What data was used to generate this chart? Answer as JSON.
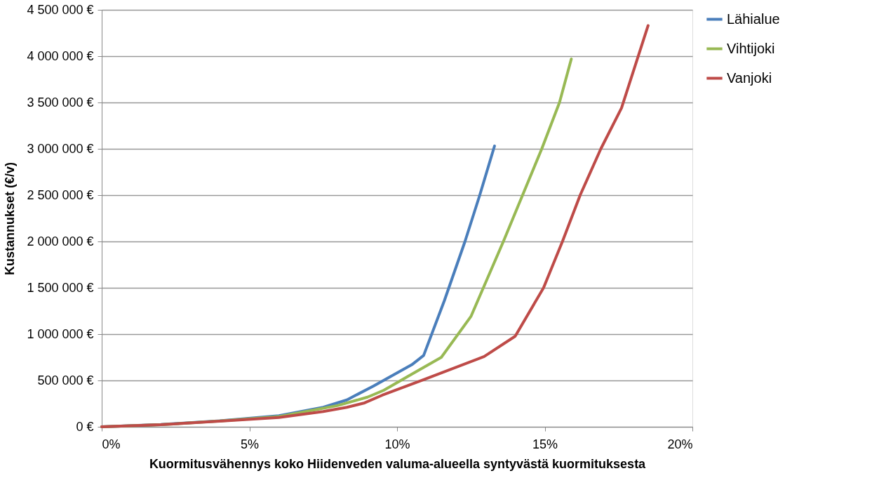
{
  "chart_data": {
    "type": "line",
    "xlabel": "Kuormitusvähennys koko Hiidenveden valuma-alueella syntyvästä kuormituksesta",
    "ylabel": "Kustannukset (€/v)",
    "xlim": [
      0,
      20
    ],
    "xticks": [
      {
        "value": 0,
        "label": "0%"
      },
      {
        "value": 5,
        "label": "5%"
      },
      {
        "value": 10,
        "label": "10%"
      },
      {
        "value": 15,
        "label": "15%"
      },
      {
        "value": 20,
        "label": "20%"
      }
    ],
    "ylim": [
      0,
      4500000
    ],
    "yticks": [
      {
        "value": 0,
        "label": "0 €"
      },
      {
        "value": 500000,
        "label": "500 000 €"
      },
      {
        "value": 1000000,
        "label": "1 000 000 €"
      },
      {
        "value": 1500000,
        "label": "1 500 000 €"
      },
      {
        "value": 2000000,
        "label": "2 000 000 €"
      },
      {
        "value": 2500000,
        "label": "2 500 000 €"
      },
      {
        "value": 3000000,
        "label": "3 000 000 €"
      },
      {
        "value": 3500000,
        "label": "3 500 000 €"
      },
      {
        "value": 4000000,
        "label": "4 000 000 €"
      },
      {
        "value": 4500000,
        "label": "4 500 000 €"
      }
    ],
    "grid": "y",
    "legend": "right",
    "marker": "none",
    "line_style": "solid",
    "series": [
      {
        "name": "Lähialue",
        "color": "#4a7ebb",
        "x": [
          0,
          2,
          4,
          6,
          7.5,
          8.3,
          9.2,
          10.5,
          10.9,
          11.6,
          12.3,
          12.8,
          13.3
        ],
        "values": [
          0,
          25000,
          65000,
          120000,
          210000,
          290000,
          440000,
          670000,
          770000,
          1360000,
          2000000,
          2500000,
          3030000
        ]
      },
      {
        "name": "Vihtijoki",
        "color": "#98b954",
        "x": [
          0,
          2,
          4,
          6,
          8,
          9,
          9.55,
          10.5,
          11.5,
          12.5,
          13.6,
          14.9,
          15.5,
          15.9
        ],
        "values": [
          0,
          22000,
          62000,
          110000,
          230000,
          320000,
          394000,
          568000,
          750000,
          1190000,
          2000000,
          3000000,
          3500000,
          3970000
        ]
      },
      {
        "name": "Vanjoki",
        "color": "#be4b48",
        "x": [
          0,
          2,
          4,
          6,
          7.5,
          8.3,
          8.9,
          9.5,
          10.9,
          12.95,
          14.0,
          14.96,
          15.6,
          16.2,
          16.9,
          17.6,
          18.5
        ],
        "values": [
          0,
          22000,
          60000,
          100000,
          165000,
          210000,
          258000,
          341000,
          508000,
          758000,
          977000,
          1500000,
          2000000,
          2500000,
          3000000,
          3440000,
          4330000
        ]
      }
    ]
  }
}
